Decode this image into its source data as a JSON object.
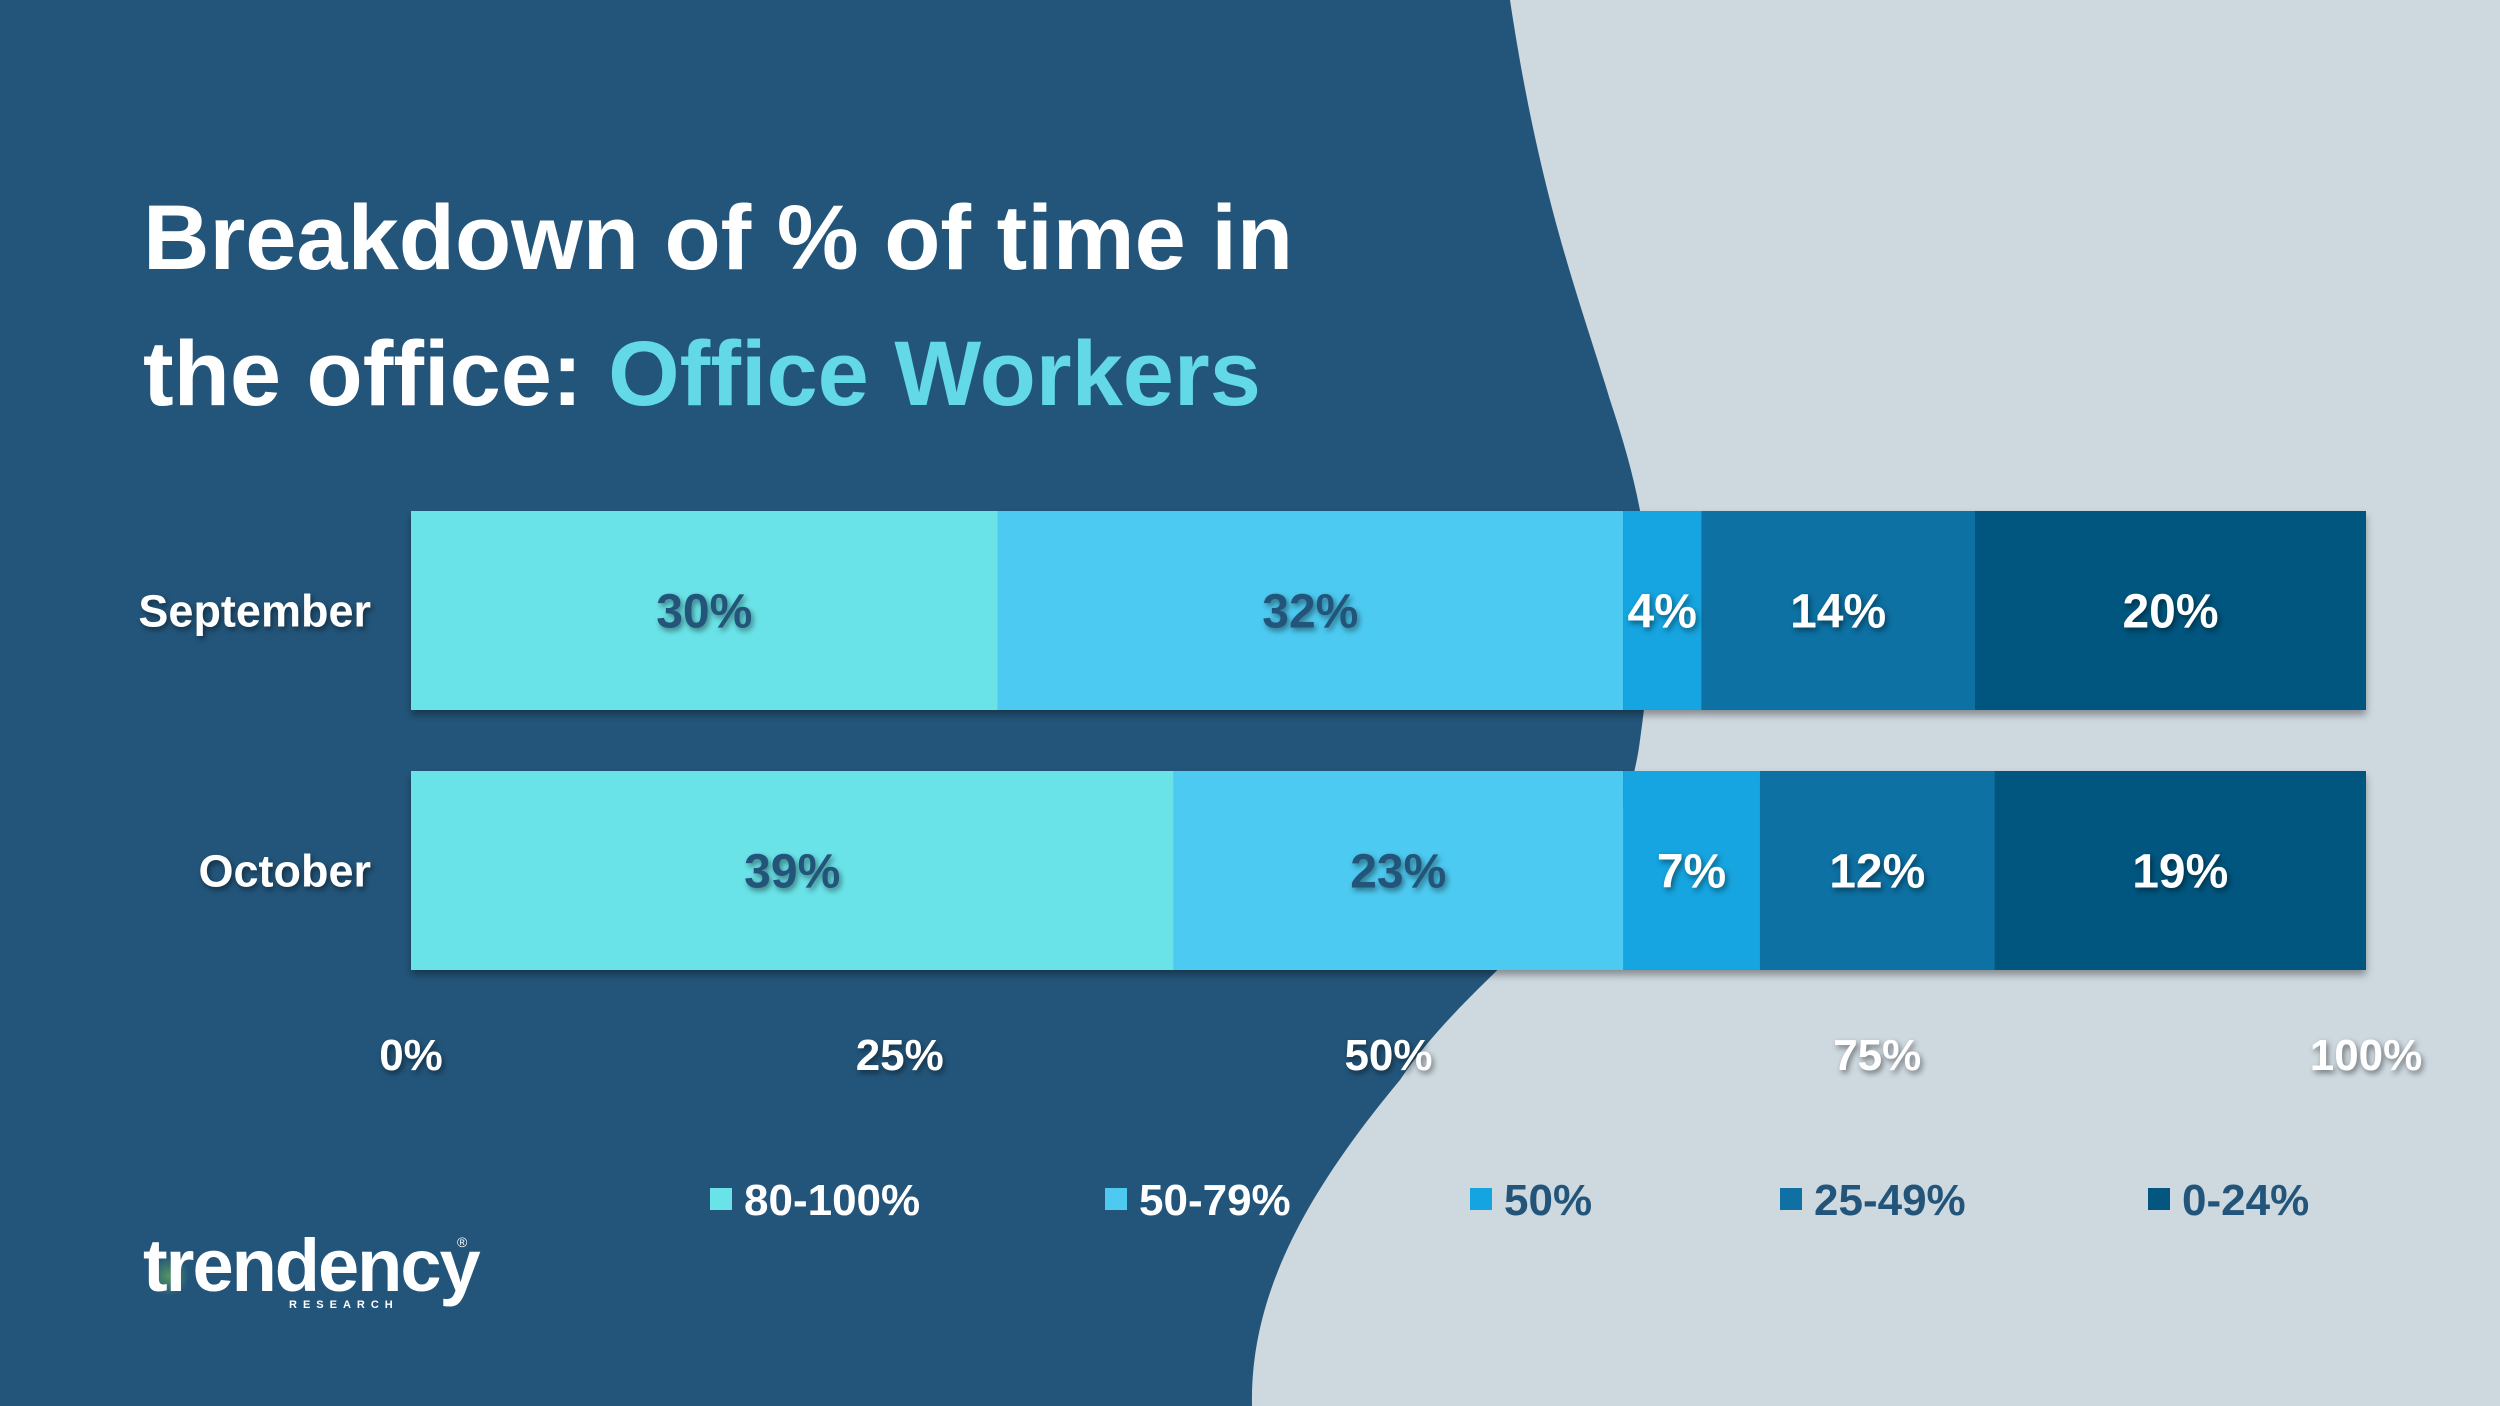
{
  "title": {
    "line1": "Breakdown of % of time in",
    "line2_prefix": "the office: ",
    "line2_accent": "Office Workers"
  },
  "colors": {
    "background_dark": "#23557a",
    "background_light": "#cdd8df",
    "accent": "#63d8e6",
    "label_dark": "#23557a"
  },
  "chart_data": {
    "type": "bar",
    "orientation": "horizontal",
    "stacked": true,
    "categories": [
      "September",
      "October"
    ],
    "series": [
      {
        "name": "80-100%",
        "color": "#6ae3e8",
        "values": [
          30,
          39
        ],
        "labels": [
          "30%",
          "39%"
        ],
        "label_color": "#23557a"
      },
      {
        "name": "50-79%",
        "color": "#4ecaf1",
        "values": [
          32,
          23
        ],
        "labels": [
          "32%",
          "23%"
        ],
        "label_color": "#23557a"
      },
      {
        "name": "50%",
        "color": "#14a5e0",
        "values": [
          4,
          7
        ],
        "labels": [
          "4%",
          "7%"
        ],
        "label_color": "#ffffff"
      },
      {
        "name": "25-49%",
        "color": "#0f71a3",
        "values": [
          14,
          12
        ],
        "labels": [
          "14%",
          "12%"
        ],
        "label_color": "#ffffff"
      },
      {
        "name": "0-24%",
        "color": "#03567f",
        "values": [
          20,
          19
        ],
        "labels": [
          "20%",
          "19%"
        ],
        "label_color": "#ffffff"
      }
    ],
    "xlim": [
      0,
      100
    ],
    "xticks": [
      "0%",
      "25%",
      "50%",
      "75%",
      "100%"
    ],
    "grid": false,
    "legend_position": "bottom"
  },
  "logo": {
    "name": "trendency",
    "sub": "RESEARCH",
    "reg": "®"
  }
}
